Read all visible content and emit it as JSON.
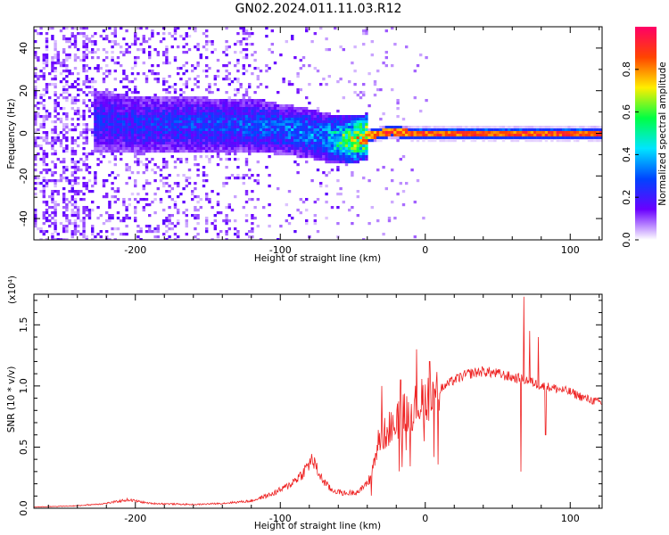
{
  "title": "GN02.2024.011.11.03.R12",
  "chart_data": [
    {
      "type": "heatmap",
      "title": "",
      "xlabel": "Height of straight line (km)",
      "ylabel": "Frequency (Hz)",
      "xlim": [
        -270,
        122
      ],
      "ylim": [
        -50,
        49
      ],
      "xticks": [
        "-200",
        "-100",
        "0",
        "100"
      ],
      "yticks": [
        "-40",
        "-20",
        "0",
        "20",
        "40"
      ],
      "colorbar": {
        "label": "Normalized spectral amplitude",
        "range": [
          0.0,
          1.0
        ],
        "ticks": [
          "0.0",
          "0.2",
          "0.4",
          "0.6",
          "0.8"
        ],
        "colormap": [
          "#ffffff",
          "#6a00ff",
          "#0044ff",
          "#00e5ff",
          "#00ff44",
          "#ffee00",
          "#ff4400",
          "#ff0066"
        ]
      },
      "ridge": {
        "description_points": [
          [
            -230,
            6
          ],
          [
            -200,
            4
          ],
          [
            -150,
            4
          ],
          [
            -120,
            4
          ],
          [
            -100,
            2
          ],
          [
            -80,
            0
          ],
          [
            -60,
            -3
          ],
          [
            -50,
            -3
          ],
          [
            -40,
            -1
          ],
          [
            -25,
            1
          ],
          [
            -10,
            0
          ],
          [
            0,
            0
          ],
          [
            120,
            0
          ]
        ],
        "amplitude": [
          [
            -230,
            0.25
          ],
          [
            -150,
            0.3
          ],
          [
            -100,
            0.35
          ],
          [
            -70,
            0.4
          ],
          [
            -50,
            0.75
          ],
          [
            -30,
            0.85
          ],
          [
            0,
            0.9
          ],
          [
            120,
            0.9
          ]
        ]
      }
    },
    {
      "type": "line",
      "title": "",
      "xlabel": "Height of straight line (km)",
      "ylabel": "SNR (10 * v/v)",
      "y_multiplier": "(x10⁴)",
      "xlim": [
        -270,
        122
      ],
      "ylim": [
        0,
        1.75
      ],
      "xticks": [
        "-200",
        "-100",
        "0",
        "100"
      ],
      "yticks": [
        "0.0",
        "0.5",
        "1.0",
        "1.5"
      ],
      "color": "#ee2222",
      "envelope": [
        [
          -270,
          0.01
        ],
        [
          -240,
          0.02
        ],
        [
          -220,
          0.04
        ],
        [
          -205,
          0.07
        ],
        [
          -190,
          0.04
        ],
        [
          -160,
          0.03
        ],
        [
          -140,
          0.04
        ],
        [
          -120,
          0.06
        ],
        [
          -105,
          0.12
        ],
        [
          -95,
          0.18
        ],
        [
          -85,
          0.28
        ],
        [
          -78,
          0.4
        ],
        [
          -72,
          0.25
        ],
        [
          -65,
          0.15
        ],
        [
          -55,
          0.12
        ],
        [
          -45,
          0.14
        ],
        [
          -38,
          0.25
        ],
        [
          -32,
          0.55
        ],
        [
          -25,
          0.65
        ],
        [
          -15,
          0.78
        ],
        [
          -8,
          0.82
        ],
        [
          0,
          0.9
        ],
        [
          10,
          0.97
        ],
        [
          20,
          1.05
        ],
        [
          30,
          1.1
        ],
        [
          40,
          1.12
        ],
        [
          50,
          1.1
        ],
        [
          60,
          1.07
        ],
        [
          70,
          1.05
        ],
        [
          80,
          1.0
        ],
        [
          90,
          0.98
        ],
        [
          100,
          0.95
        ],
        [
          110,
          0.9
        ],
        [
          122,
          0.86
        ]
      ],
      "spikes": [
        [
          68,
          1.73
        ],
        [
          66,
          0.3
        ],
        [
          72,
          1.45
        ],
        [
          78,
          1.4
        ],
        [
          83,
          0.6
        ],
        [
          -6,
          1.3
        ],
        [
          3,
          1.2
        ],
        [
          -30,
          1.0
        ],
        [
          -17,
          1.05
        ]
      ]
    }
  ]
}
